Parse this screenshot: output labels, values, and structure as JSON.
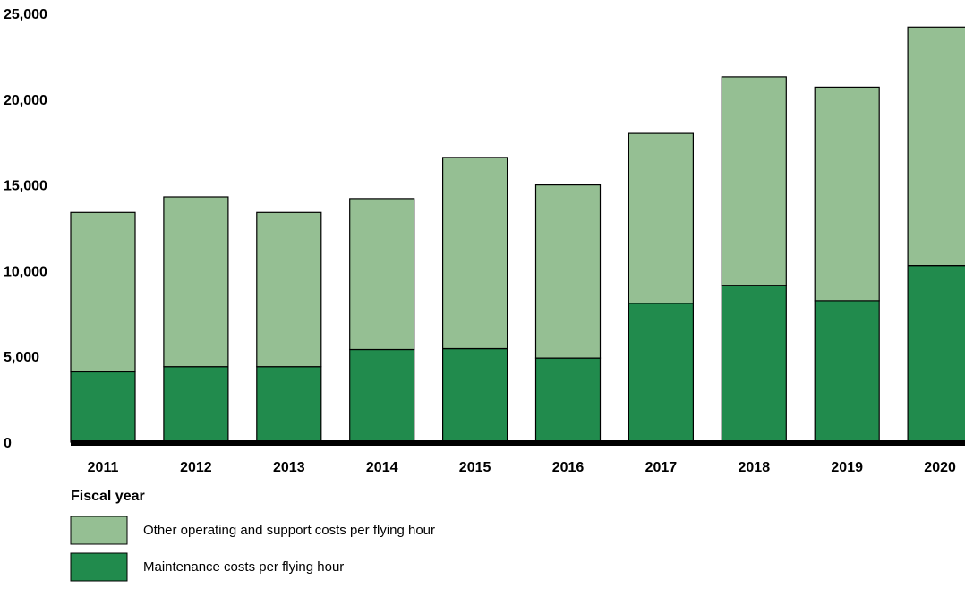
{
  "chart_data": {
    "type": "bar",
    "stacked": true,
    "categories": [
      "2011",
      "2012",
      "2013",
      "2014",
      "2015",
      "2016",
      "2017",
      "2018",
      "2019",
      "2020"
    ],
    "series": [
      {
        "name": "Maintenance costs per flying hour",
        "color": "#218b4d",
        "values": [
          4100,
          4400,
          4400,
          5400,
          5450,
          4900,
          8100,
          9150,
          8250,
          10300
        ]
      },
      {
        "name": "Other operating and support costs per flying hour",
        "color": "#95bf93",
        "values": [
          9300,
          9900,
          9000,
          8800,
          11150,
          10100,
          9900,
          12150,
          12450,
          13900
        ]
      }
    ],
    "title": "",
    "xlabel": "Fiscal year",
    "ylabel": "",
    "ylim": [
      0,
      25000
    ],
    "yticks": [
      0,
      5000,
      10000,
      15000,
      20000,
      25000
    ],
    "ytick_labels": [
      "0",
      "5,000",
      "10,000",
      "15,000",
      "20,000",
      "25,000"
    ],
    "grid": false,
    "legend": {
      "position": "bottom-left",
      "entries": [
        {
          "label": "Other operating and support costs per flying hour",
          "color": "#95bf93"
        },
        {
          "label": "Maintenance costs per flying hour",
          "color": "#218b4d"
        }
      ]
    }
  }
}
